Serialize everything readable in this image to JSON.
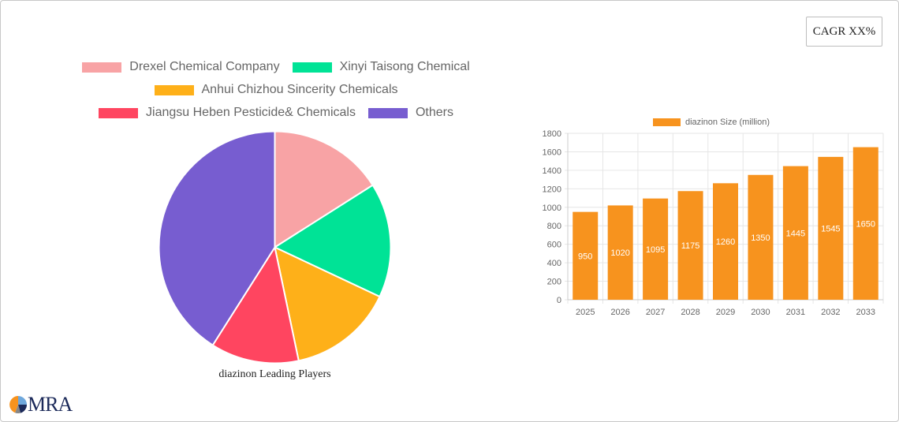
{
  "header": {
    "cagr_label": "CAGR XX%"
  },
  "pie": {
    "title": "diazinon Leading Players",
    "legend": [
      {
        "label": "Drexel Chemical Company",
        "color": "#f8a3a5"
      },
      {
        "label": "Xinyi Taisong Chemical",
        "color": "#00e396"
      },
      {
        "label": "Anhui Chizhou Sincerity Chemicals",
        "color": "#feb019"
      },
      {
        "label": "Jiangsu Heben Pesticide& Chemicals",
        "color": "#ff4560"
      },
      {
        "label": "Others",
        "color": "#775dd0"
      }
    ]
  },
  "bar": {
    "legend_label": "diazinon Size (million)",
    "color": "#f7931e"
  },
  "logo": {
    "text": "MRA"
  },
  "chart_data": [
    {
      "type": "pie",
      "title": "diazinon Leading Players",
      "categories": [
        "Drexel Chemical Company",
        "Xinyi Taisong Chemical",
        "Anhui Chizhou Sincerity Chemicals",
        "Jiangsu Heben Pesticide& Chemicals",
        "Others"
      ],
      "values": [
        16,
        16,
        14.7,
        12.3,
        41
      ],
      "colors": [
        "#f8a3a5",
        "#00e396",
        "#feb019",
        "#ff4560",
        "#775dd0"
      ],
      "legend_position": "top"
    },
    {
      "type": "bar",
      "title": "",
      "series": [
        {
          "name": "diazinon Size (million)",
          "values": [
            950,
            1020,
            1095,
            1175,
            1260,
            1350,
            1445,
            1545,
            1650
          ]
        }
      ],
      "categories": [
        "2025",
        "2026",
        "2027",
        "2028",
        "2029",
        "2030",
        "2031",
        "2032",
        "2033"
      ],
      "xlabel": "",
      "ylabel": "",
      "ylim": [
        0,
        1800
      ],
      "yticks": [
        0,
        200,
        400,
        600,
        800,
        1000,
        1200,
        1400,
        1600,
        1800
      ],
      "grid": true,
      "legend_position": "top"
    }
  ]
}
